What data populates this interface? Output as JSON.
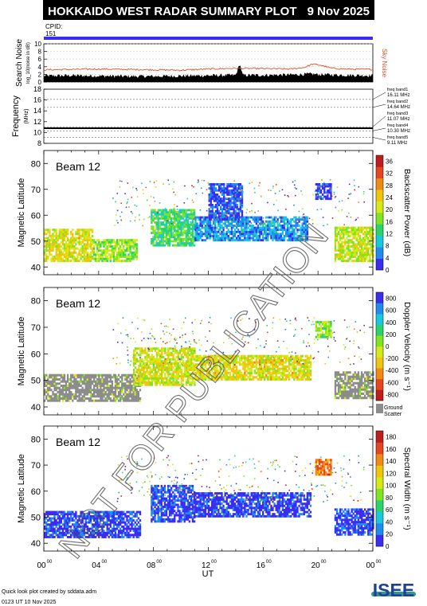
{
  "header": {
    "title": "HOKKAIDO WEST RADAR SUMMARY PLOT",
    "date": "9 Nov 2025",
    "cpid_label": "CPID:",
    "cpid_value": "151"
  },
  "footer": {
    "credit": "Quick look plot created by sddata.adm",
    "timestamp": "0123 UT 10 Nov 2025",
    "logo_text": "ISEE"
  },
  "watermark": "NOT FOR PUBLICATION",
  "colors": {
    "title_bg": "#000000",
    "title_fg": "#ffffff",
    "cpid_bar": "#3a2cf0",
    "sky_noise": "#e2502a",
    "search_noise": "#000000",
    "ground_scatter": "#8c8c8c",
    "logo_teal": "#2f9a8c",
    "logo_blue": "#1f3f9a",
    "logo_green": "#56b947"
  },
  "chart_data": [
    {
      "type": "area",
      "panel": "noise",
      "ylabel": "Search Noise",
      "ylabel_unit": "log_10(noise in dB)",
      "right_label": "Sky Noise",
      "ylim": [
        0,
        10
      ],
      "yticks": [
        "0",
        "2",
        "4",
        "6",
        "8",
        "10"
      ],
      "xlim": [
        0,
        24
      ],
      "series": [
        {
          "name": "Search Noise",
          "x": [
            0,
            2,
            4,
            6,
            8,
            10,
            12,
            14,
            14.3,
            14.5,
            16,
            18,
            19.5,
            20,
            22,
            24
          ],
          "y": [
            1.6,
            1.7,
            1.6,
            1.5,
            1.5,
            1.6,
            1.7,
            1.8,
            4.8,
            1.8,
            1.8,
            1.9,
            2.1,
            2.0,
            1.8,
            1.7
          ]
        },
        {
          "name": "Sky Noise",
          "x": [
            0,
            2,
            4,
            6,
            8,
            10,
            12,
            14,
            16,
            18,
            19,
            19.6,
            20.2,
            21,
            22,
            24
          ],
          "y": [
            3.2,
            3.3,
            3.4,
            3.3,
            3.2,
            3.1,
            3.4,
            3.6,
            3.5,
            3.4,
            3.8,
            4.7,
            4.4,
            3.6,
            3.4,
            3.3
          ]
        }
      ]
    },
    {
      "type": "line",
      "panel": "frequency",
      "ylabel": "Frequency",
      "ylabel_unit": "(MHz)",
      "ylim": [
        8,
        18
      ],
      "yticks": [
        "8",
        "10",
        "12",
        "14",
        "16",
        "18"
      ],
      "xlim": [
        0,
        24
      ],
      "bands": [
        {
          "name": "freq band1",
          "label": "16.11 MHz",
          "value": 16.11
        },
        {
          "name": "freq band2",
          "label": "14.64 MHz",
          "value": 14.64
        },
        {
          "name": "freq band3",
          "label": "11.07 MHz",
          "value": 11.07
        },
        {
          "name": "freq band4",
          "label": "10.30 MHz",
          "value": 10.3
        },
        {
          "name": "freq band5",
          "label": "9.11 MHz",
          "value": 9.11
        }
      ],
      "operating_frequency_mhz": 10.8
    },
    {
      "type": "heatmap",
      "panel": "power",
      "annotation": "Beam 12",
      "ylabel": "Magnetic Latitude",
      "colorbar_label": "Backscatter Power (dB)",
      "ylim": [
        37,
        85
      ],
      "yticks": [
        "40",
        "50",
        "60",
        "70",
        "80"
      ],
      "xlim": [
        0,
        24
      ],
      "colorbar_ticks": [
        "0",
        "4",
        "8",
        "12",
        "16",
        "20",
        "24",
        "28",
        "32",
        "36"
      ],
      "colorbar_range": [
        0,
        38
      ],
      "colorbar_colors": [
        "#3a2cf0",
        "#1f8cf0",
        "#18c8e0",
        "#2ad46a",
        "#7ee51e",
        "#d4ea12",
        "#f2c40c",
        "#f08a12",
        "#e8441e",
        "#c01c1c"
      ],
      "regions": [
        {
          "t": [
            0,
            3.6
          ],
          "lat": [
            42,
            54
          ],
          "value": 22
        },
        {
          "t": [
            3.6,
            6.8
          ],
          "lat": [
            42,
            50
          ],
          "value": 18
        },
        {
          "t": [
            7.8,
            11.0
          ],
          "lat": [
            48,
            62
          ],
          "value": 14
        },
        {
          "t": [
            11.0,
            19.2
          ],
          "lat": [
            50,
            59
          ],
          "value": 7
        },
        {
          "t": [
            12.0,
            14.5
          ],
          "lat": [
            58,
            72
          ],
          "value": 3
        },
        {
          "t": [
            19.8,
            21.0
          ],
          "lat": [
            66,
            72
          ],
          "value": 2
        },
        {
          "t": [
            21.2,
            24
          ],
          "lat": [
            42,
            55
          ],
          "value": 20
        }
      ]
    },
    {
      "type": "heatmap",
      "panel": "velocity",
      "annotation": "Beam 12",
      "ylabel": "Magnetic Latitude",
      "colorbar_label": "Doppler Velocity (m s⁻¹)",
      "ground_scatter_label": "Ground Scatter",
      "ylim": [
        37,
        85
      ],
      "yticks": [
        "40",
        "50",
        "60",
        "70",
        "80"
      ],
      "xlim": [
        0,
        24
      ],
      "colorbar_ticks": [
        "800",
        "600",
        "400",
        "200",
        "0",
        "-200",
        "-400",
        "-600",
        "-800"
      ],
      "colorbar_range": [
        -900,
        900
      ],
      "colorbar_colors": [
        "#3a2cf0",
        "#1f8cf0",
        "#18c8e0",
        "#2ad46a",
        "#7ee51e",
        "#d4ea12",
        "#f2c40c",
        "#f08a12",
        "#e8441e",
        "#c01c1c"
      ],
      "regions": [
        {
          "t": [
            0,
            7.0
          ],
          "lat": [
            42,
            52
          ],
          "value": "ground"
        },
        {
          "t": [
            6.5,
            11.0
          ],
          "lat": [
            48,
            62
          ],
          "value": -100
        },
        {
          "t": [
            11.0,
            19.5
          ],
          "lat": [
            50,
            59
          ],
          "value": -150
        },
        {
          "t": [
            19.8,
            21.0
          ],
          "lat": [
            66,
            72
          ],
          "value": 60
        },
        {
          "t": [
            21.2,
            24
          ],
          "lat": [
            43,
            53
          ],
          "value": "ground"
        }
      ]
    },
    {
      "type": "heatmap",
      "panel": "width",
      "annotation": "Beam 12",
      "ylabel": "Magnetic Latitude",
      "colorbar_label": "Spectral Width (m s⁻¹)",
      "ylim": [
        37,
        85
      ],
      "yticks": [
        "40",
        "50",
        "60",
        "70",
        "80"
      ],
      "xlim": [
        0,
        24
      ],
      "xlabel": "UT",
      "xticks": [
        "00",
        "04",
        "08",
        "12",
        "16",
        "20",
        "00"
      ],
      "xtick_sup": "00",
      "colorbar_ticks": [
        "0",
        "20",
        "40",
        "60",
        "80",
        "100",
        "120",
        "140",
        "160",
        "180"
      ],
      "colorbar_range": [
        0,
        190
      ],
      "colorbar_colors": [
        "#3a2cf0",
        "#1f8cf0",
        "#18c8e0",
        "#2ad46a",
        "#7ee51e",
        "#d4ea12",
        "#f2c40c",
        "#f08a12",
        "#e8441e",
        "#c01c1c"
      ],
      "regions": [
        {
          "t": [
            0,
            7.0
          ],
          "lat": [
            42,
            52
          ],
          "value": 10
        },
        {
          "t": [
            7.8,
            11.0
          ],
          "lat": [
            48,
            62
          ],
          "value": 12
        },
        {
          "t": [
            11.0,
            19.5
          ],
          "lat": [
            50,
            59
          ],
          "value": 8
        },
        {
          "t": [
            19.8,
            21.0
          ],
          "lat": [
            66,
            72
          ],
          "value": 150
        },
        {
          "t": [
            21.2,
            24
          ],
          "lat": [
            43,
            53
          ],
          "value": 10
        }
      ]
    }
  ]
}
